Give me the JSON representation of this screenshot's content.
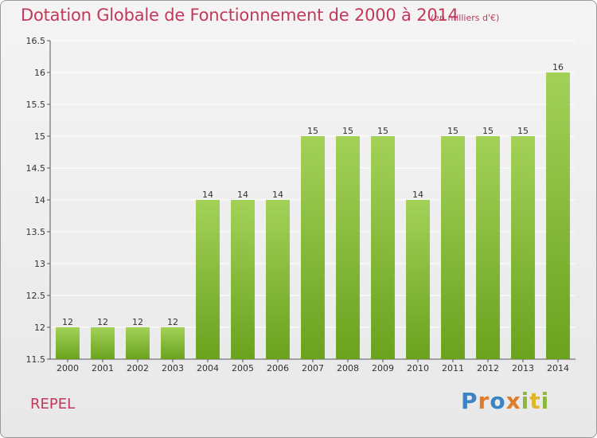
{
  "header": {
    "title": "Dotation Globale de Fonctionnement de 2000 à 2014",
    "subtitle": "(en milliers d'€)"
  },
  "footer": {
    "place": "REPEL",
    "logo": [
      "P",
      "r",
      "o",
      "x",
      "i",
      "t",
      "i"
    ]
  },
  "colors": {
    "bar_top": "#a3d158",
    "bar_bottom": "#6aa21d",
    "title": "#c0395a",
    "grid": "#ffffff"
  },
  "chart_data": {
    "type": "bar",
    "title": "Dotation Globale de Fonctionnement de 2000 à 2014",
    "subtitle": "(en milliers d'€)",
    "xlabel": "",
    "ylabel": "",
    "categories": [
      "2000",
      "2001",
      "2002",
      "2003",
      "2004",
      "2005",
      "2006",
      "2007",
      "2008",
      "2009",
      "2010",
      "2011",
      "2012",
      "2013",
      "2014"
    ],
    "values": [
      12,
      12,
      12,
      12,
      14,
      14,
      14,
      15,
      15,
      15,
      14,
      15,
      15,
      15,
      16
    ],
    "data_labels": [
      "12",
      "12",
      "12",
      "12",
      "14",
      "14",
      "14",
      "15",
      "15",
      "15",
      "14",
      "15",
      "15",
      "15",
      "16"
    ],
    "ylim": [
      11.5,
      16.5
    ],
    "yticks": [
      11.5,
      12,
      12.5,
      13,
      13.5,
      14,
      14.5,
      15,
      15.5,
      16,
      16.5
    ],
    "ytick_labels": [
      "11.5",
      "12",
      "12.5",
      "13",
      "13.5",
      "14",
      "14.5",
      "15",
      "15.5",
      "16",
      "16.5"
    ],
    "grid": true,
    "legend": "none"
  }
}
